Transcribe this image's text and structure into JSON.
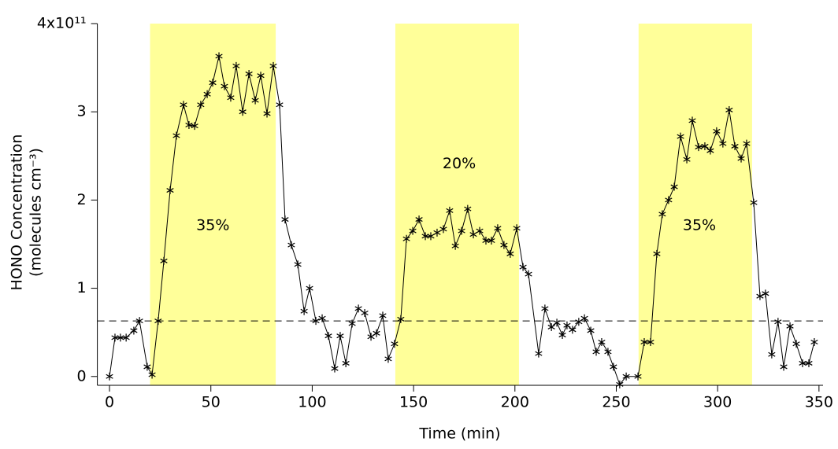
{
  "chart_data": {
    "type": "line",
    "x_label": "Time (min)",
    "y_label": [
      "HONO Concentration",
      "(molecules cm⁻³)"
    ],
    "xlim": [
      -6,
      352
    ],
    "ylim": [
      -0.1,
      4
    ],
    "xticks": [
      0,
      50,
      100,
      150,
      200,
      250,
      300,
      350
    ],
    "yticks": [
      0,
      1,
      2,
      3,
      {
        "value": 4,
        "label": "4x10¹¹"
      }
    ],
    "shaded_regions": [
      {
        "x": [
          20,
          82
        ],
        "color": "#ffff99"
      },
      {
        "x": [
          141,
          202
        ],
        "color": "#ffff99"
      },
      {
        "x": [
          261,
          317
        ],
        "color": "#ffff99"
      }
    ],
    "annotations": [
      {
        "text": "35%",
        "x": 51,
        "y": 1.71
      },
      {
        "text": "20%",
        "x": 172.5,
        "y": 2.41
      },
      {
        "text": "35%",
        "x": 291,
        "y": 1.71
      }
    ],
    "reference_line": {
      "y": 0.63,
      "style": "dashed"
    },
    "color": "#000000",
    "x": [
      0,
      2.7,
      5.4,
      8.2,
      12,
      14.8,
      18.6,
      21,
      24,
      26.8,
      29.9,
      33,
      36.5,
      39.2,
      42,
      45,
      48.2,
      50.9,
      54,
      56.7,
      59.8,
      62.5,
      65.7,
      68.8,
      71.9,
      74.6,
      77.7,
      80.8,
      83.9,
      86.6,
      89.7,
      92.9,
      96,
      98.7,
      101.8,
      104.9,
      108,
      111.1,
      113.8,
      116.6,
      119.7,
      122.8,
      125.9,
      129,
      131.7,
      134.8,
      137.5,
      140.6,
      143.7,
      146.5,
      149.6,
      152.7,
      155.8,
      158.5,
      161.6,
      164.7,
      167.8,
      170.6,
      173.7,
      176.7,
      179.5,
      182.6,
      185.7,
      188.4,
      191.5,
      194.6,
      197.7,
      200.9,
      204,
      206.7,
      211.7,
      214.8,
      218,
      220.7,
      223.4,
      225.7,
      228.4,
      231.5,
      234.3,
      237.4,
      240.1,
      242.8,
      245.9,
      248.6,
      251.7,
      254.9,
      260.7,
      263.8,
      266.9,
      270,
      272.7,
      275.8,
      278.6,
      281.7,
      284.8,
      287.5,
      290.6,
      293.7,
      296.4,
      299.5,
      302.6,
      305.7,
      308.5,
      311.6,
      314.3,
      317.8,
      320.9,
      323.6,
      326.7,
      329.8,
      332.6,
      335.7,
      338.8,
      341.9,
      345,
      347.7
    ],
    "values": [
      0,
      0.44,
      0.44,
      0.44,
      0.52,
      0.63,
      0.11,
      0.02,
      0.63,
      1.31,
      2.11,
      2.73,
      3.08,
      2.85,
      2.84,
      3.08,
      3.2,
      3.33,
      3.63,
      3.29,
      3.16,
      3.52,
      3.0,
      3.43,
      3.13,
      3.41,
      2.98,
      3.52,
      3.08,
      1.78,
      1.49,
      1.27,
      0.74,
      1.0,
      0.63,
      0.66,
      0.46,
      0.09,
      0.46,
      0.15,
      0.6,
      0.77,
      0.72,
      0.45,
      0.49,
      0.69,
      0.2,
      0.37,
      0.65,
      1.56,
      1.65,
      1.78,
      1.59,
      1.59,
      1.63,
      1.67,
      1.88,
      1.48,
      1.65,
      1.9,
      1.61,
      1.65,
      1.54,
      1.54,
      1.68,
      1.49,
      1.39,
      1.68,
      1.24,
      1.16,
      0.26,
      0.77,
      0.56,
      0.61,
      0.47,
      0.58,
      0.53,
      0.62,
      0.66,
      0.52,
      0.28,
      0.39,
      0.28,
      0.11,
      -0.09,
      0.0,
      0.0,
      0.39,
      0.39,
      1.39,
      1.84,
      2.0,
      2.15,
      2.72,
      2.46,
      2.9,
      2.6,
      2.61,
      2.56,
      2.78,
      2.64,
      3.02,
      2.61,
      2.47,
      2.64,
      1.97,
      0.91,
      0.94,
      0.25,
      0.62,
      0.11,
      0.57,
      0.37,
      0.15,
      0.15,
      0.39
    ]
  }
}
